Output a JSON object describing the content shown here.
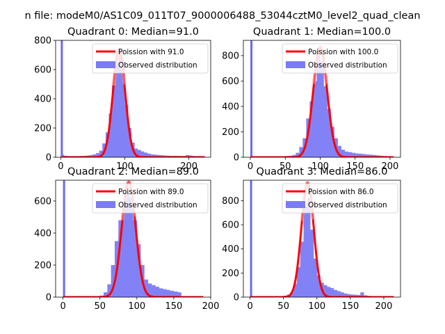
{
  "figure": {
    "suptitle": "n file: modeM0/AS1C09_011T07_9000006488_53044cztM0_level2_quad_clean"
  },
  "colors": {
    "hist": "#7b7bf5",
    "poisson": "#ff0000",
    "spike": "#6a6af2"
  },
  "chart_data": [
    {
      "type": "bar",
      "title": "Quadrant 0: Median=91.0",
      "xlim": [
        -8,
        234
      ],
      "ylim": [
        0,
        800
      ],
      "xticks": [
        0,
        100,
        200
      ],
      "yticks": [
        0,
        200,
        400,
        600,
        800
      ],
      "legend": {
        "placement": "top-right",
        "entries": [
          "Poission with 91.0",
          "Observed distribution"
        ]
      },
      "mean": 91,
      "peak": 735,
      "spike": {
        "x": 0,
        "value": 800
      },
      "bins": [
        {
          "x": 0,
          "value": 18
        },
        {
          "x": 5,
          "value": 10
        },
        {
          "x": 10,
          "value": 8
        },
        {
          "x": 15,
          "value": 8
        },
        {
          "x": 20,
          "value": 8
        },
        {
          "x": 25,
          "value": 8
        },
        {
          "x": 30,
          "value": 9
        },
        {
          "x": 35,
          "value": 10
        },
        {
          "x": 40,
          "value": 12
        },
        {
          "x": 45,
          "value": 15
        },
        {
          "x": 50,
          "value": 20
        },
        {
          "x": 55,
          "value": 28
        },
        {
          "x": 60,
          "value": 45
        },
        {
          "x": 65,
          "value": 95
        },
        {
          "x": 70,
          "value": 170
        },
        {
          "x": 75,
          "value": 300
        },
        {
          "x": 80,
          "value": 495
        },
        {
          "x": 85,
          "value": 650
        },
        {
          "x": 90,
          "value": 700
        },
        {
          "x": 95,
          "value": 610
        },
        {
          "x": 100,
          "value": 360
        },
        {
          "x": 105,
          "value": 200
        },
        {
          "x": 110,
          "value": 100
        },
        {
          "x": 115,
          "value": 60
        },
        {
          "x": 120,
          "value": 50
        },
        {
          "x": 125,
          "value": 40
        },
        {
          "x": 130,
          "value": 32
        },
        {
          "x": 135,
          "value": 25
        },
        {
          "x": 140,
          "value": 20
        },
        {
          "x": 145,
          "value": 18
        },
        {
          "x": 150,
          "value": 16
        },
        {
          "x": 155,
          "value": 14
        },
        {
          "x": 160,
          "value": 12
        },
        {
          "x": 165,
          "value": 11
        },
        {
          "x": 170,
          "value": 10
        },
        {
          "x": 175,
          "value": 10
        },
        {
          "x": 180,
          "value": 10
        },
        {
          "x": 185,
          "value": 9
        },
        {
          "x": 190,
          "value": 9
        },
        {
          "x": 195,
          "value": 15
        },
        {
          "x": 200,
          "value": 12
        },
        {
          "x": 205,
          "value": 9
        },
        {
          "x": 210,
          "value": 8
        },
        {
          "x": 215,
          "value": 8
        },
        {
          "x": 220,
          "value": 8
        }
      ]
    },
    {
      "type": "bar",
      "title": "Quadrant 1: Median=100.0",
      "xlim": [
        -10,
        215
      ],
      "ylim": [
        0,
        920
      ],
      "xticks": [
        0,
        50,
        100,
        150,
        200
      ],
      "yticks": [
        0,
        200,
        400,
        600,
        800
      ],
      "legend": {
        "placement": "top-right",
        "entries": [
          "Poission with 100.0",
          "Observed distribution"
        ]
      },
      "mean": 100,
      "peak": 865,
      "spike": {
        "x": 0,
        "value": 920
      },
      "bins": [
        {
          "x": 0,
          "value": 8
        },
        {
          "x": 5,
          "value": 8
        },
        {
          "x": 10,
          "value": 8
        },
        {
          "x": 15,
          "value": 8
        },
        {
          "x": 20,
          "value": 8
        },
        {
          "x": 25,
          "value": 8
        },
        {
          "x": 30,
          "value": 8
        },
        {
          "x": 35,
          "value": 8
        },
        {
          "x": 40,
          "value": 8
        },
        {
          "x": 45,
          "value": 8
        },
        {
          "x": 50,
          "value": 10
        },
        {
          "x": 55,
          "value": 12
        },
        {
          "x": 60,
          "value": 18
        },
        {
          "x": 65,
          "value": 35
        },
        {
          "x": 70,
          "value": 80
        },
        {
          "x": 75,
          "value": 150
        },
        {
          "x": 80,
          "value": 305
        },
        {
          "x": 85,
          "value": 440
        },
        {
          "x": 90,
          "value": 600
        },
        {
          "x": 95,
          "value": 800
        },
        {
          "x": 100,
          "value": 755
        },
        {
          "x": 105,
          "value": 560
        },
        {
          "x": 110,
          "value": 380
        },
        {
          "x": 115,
          "value": 240
        },
        {
          "x": 120,
          "value": 150
        },
        {
          "x": 125,
          "value": 90
        },
        {
          "x": 130,
          "value": 60
        },
        {
          "x": 135,
          "value": 45
        },
        {
          "x": 140,
          "value": 40
        },
        {
          "x": 145,
          "value": 35
        },
        {
          "x": 150,
          "value": 30
        },
        {
          "x": 155,
          "value": 28
        },
        {
          "x": 160,
          "value": 25
        },
        {
          "x": 165,
          "value": 22
        },
        {
          "x": 170,
          "value": 20
        },
        {
          "x": 175,
          "value": 18
        },
        {
          "x": 180,
          "value": 15
        },
        {
          "x": 185,
          "value": 12
        },
        {
          "x": 190,
          "value": 10
        },
        {
          "x": 195,
          "value": 8
        },
        {
          "x": 200,
          "value": 6
        }
      ]
    },
    {
      "type": "bar",
      "title": "Quadrant 2: Median=89.0",
      "xlim": [
        -10,
        200
      ],
      "ylim": [
        0,
        730
      ],
      "xticks": [
        0,
        50,
        100,
        150,
        200
      ],
      "yticks": [
        0,
        200,
        400,
        600
      ],
      "legend": {
        "placement": "top-right",
        "entries": [
          "Poission with 89.0",
          "Observed distribution"
        ]
      },
      "mean": 89,
      "peak": 720,
      "spike": {
        "x": 0,
        "value": 730
      },
      "bins": [
        {
          "x": 0,
          "value": 5
        },
        {
          "x": 5,
          "value": 5
        },
        {
          "x": 10,
          "value": 5
        },
        {
          "x": 15,
          "value": 5
        },
        {
          "x": 20,
          "value": 5
        },
        {
          "x": 25,
          "value": 5
        },
        {
          "x": 30,
          "value": 5
        },
        {
          "x": 35,
          "value": 5
        },
        {
          "x": 40,
          "value": 5
        },
        {
          "x": 45,
          "value": 5
        },
        {
          "x": 50,
          "value": 10
        },
        {
          "x": 55,
          "value": 30
        },
        {
          "x": 60,
          "value": 80
        },
        {
          "x": 65,
          "value": 200
        },
        {
          "x": 70,
          "value": 350
        },
        {
          "x": 75,
          "value": 480
        },
        {
          "x": 80,
          "value": 580
        },
        {
          "x": 85,
          "value": 650
        },
        {
          "x": 90,
          "value": 620
        },
        {
          "x": 95,
          "value": 480
        },
        {
          "x": 100,
          "value": 330
        },
        {
          "x": 105,
          "value": 200
        },
        {
          "x": 110,
          "value": 110
        },
        {
          "x": 115,
          "value": 85
        },
        {
          "x": 120,
          "value": 75
        },
        {
          "x": 125,
          "value": 65
        },
        {
          "x": 130,
          "value": 55
        },
        {
          "x": 135,
          "value": 50
        },
        {
          "x": 140,
          "value": 45
        },
        {
          "x": 145,
          "value": 40
        },
        {
          "x": 150,
          "value": 35
        },
        {
          "x": 155,
          "value": 30
        },
        {
          "x": 160,
          "value": 5
        }
      ]
    },
    {
      "type": "bar",
      "title": "Quadrant 3: Median=86.0",
      "xlim": [
        -10,
        225
      ],
      "ylim": [
        0,
        970
      ],
      "xticks": [
        0,
        50,
        100,
        150,
        200
      ],
      "yticks": [
        0,
        200,
        400,
        600,
        800
      ],
      "legend": {
        "placement": "top-right",
        "entries": [
          "Poission with 86.0",
          "Observed distribution"
        ]
      },
      "mean": 86,
      "peak": 950,
      "spike": {
        "x": 0,
        "value": 970
      },
      "bins": [
        {
          "x": 0,
          "value": 8
        },
        {
          "x": 5,
          "value": 6
        },
        {
          "x": 10,
          "value": 5
        },
        {
          "x": 15,
          "value": 5
        },
        {
          "x": 20,
          "value": 5
        },
        {
          "x": 25,
          "value": 5
        },
        {
          "x": 30,
          "value": 5
        },
        {
          "x": 35,
          "value": 5
        },
        {
          "x": 40,
          "value": 6
        },
        {
          "x": 45,
          "value": 8
        },
        {
          "x": 50,
          "value": 12
        },
        {
          "x": 55,
          "value": 20
        },
        {
          "x": 60,
          "value": 40
        },
        {
          "x": 65,
          "value": 110
        },
        {
          "x": 70,
          "value": 250
        },
        {
          "x": 75,
          "value": 460
        },
        {
          "x": 80,
          "value": 750
        },
        {
          "x": 85,
          "value": 820
        },
        {
          "x": 90,
          "value": 560
        },
        {
          "x": 95,
          "value": 320
        },
        {
          "x": 100,
          "value": 180
        },
        {
          "x": 105,
          "value": 120
        },
        {
          "x": 110,
          "value": 100
        },
        {
          "x": 115,
          "value": 85
        },
        {
          "x": 120,
          "value": 75
        },
        {
          "x": 125,
          "value": 60
        },
        {
          "x": 130,
          "value": 50
        },
        {
          "x": 135,
          "value": 40
        },
        {
          "x": 140,
          "value": 30
        },
        {
          "x": 145,
          "value": 25
        },
        {
          "x": 150,
          "value": 22
        },
        {
          "x": 155,
          "value": 20
        },
        {
          "x": 160,
          "value": 18
        },
        {
          "x": 165,
          "value": 40
        },
        {
          "x": 170,
          "value": 15
        },
        {
          "x": 175,
          "value": 10
        },
        {
          "x": 180,
          "value": 8
        },
        {
          "x": 185,
          "value": 6
        },
        {
          "x": 190,
          "value": 5
        },
        {
          "x": 195,
          "value": 5
        },
        {
          "x": 200,
          "value": 5
        },
        {
          "x": 205,
          "value": 5
        },
        {
          "x": 210,
          "value": 5
        }
      ]
    }
  ]
}
